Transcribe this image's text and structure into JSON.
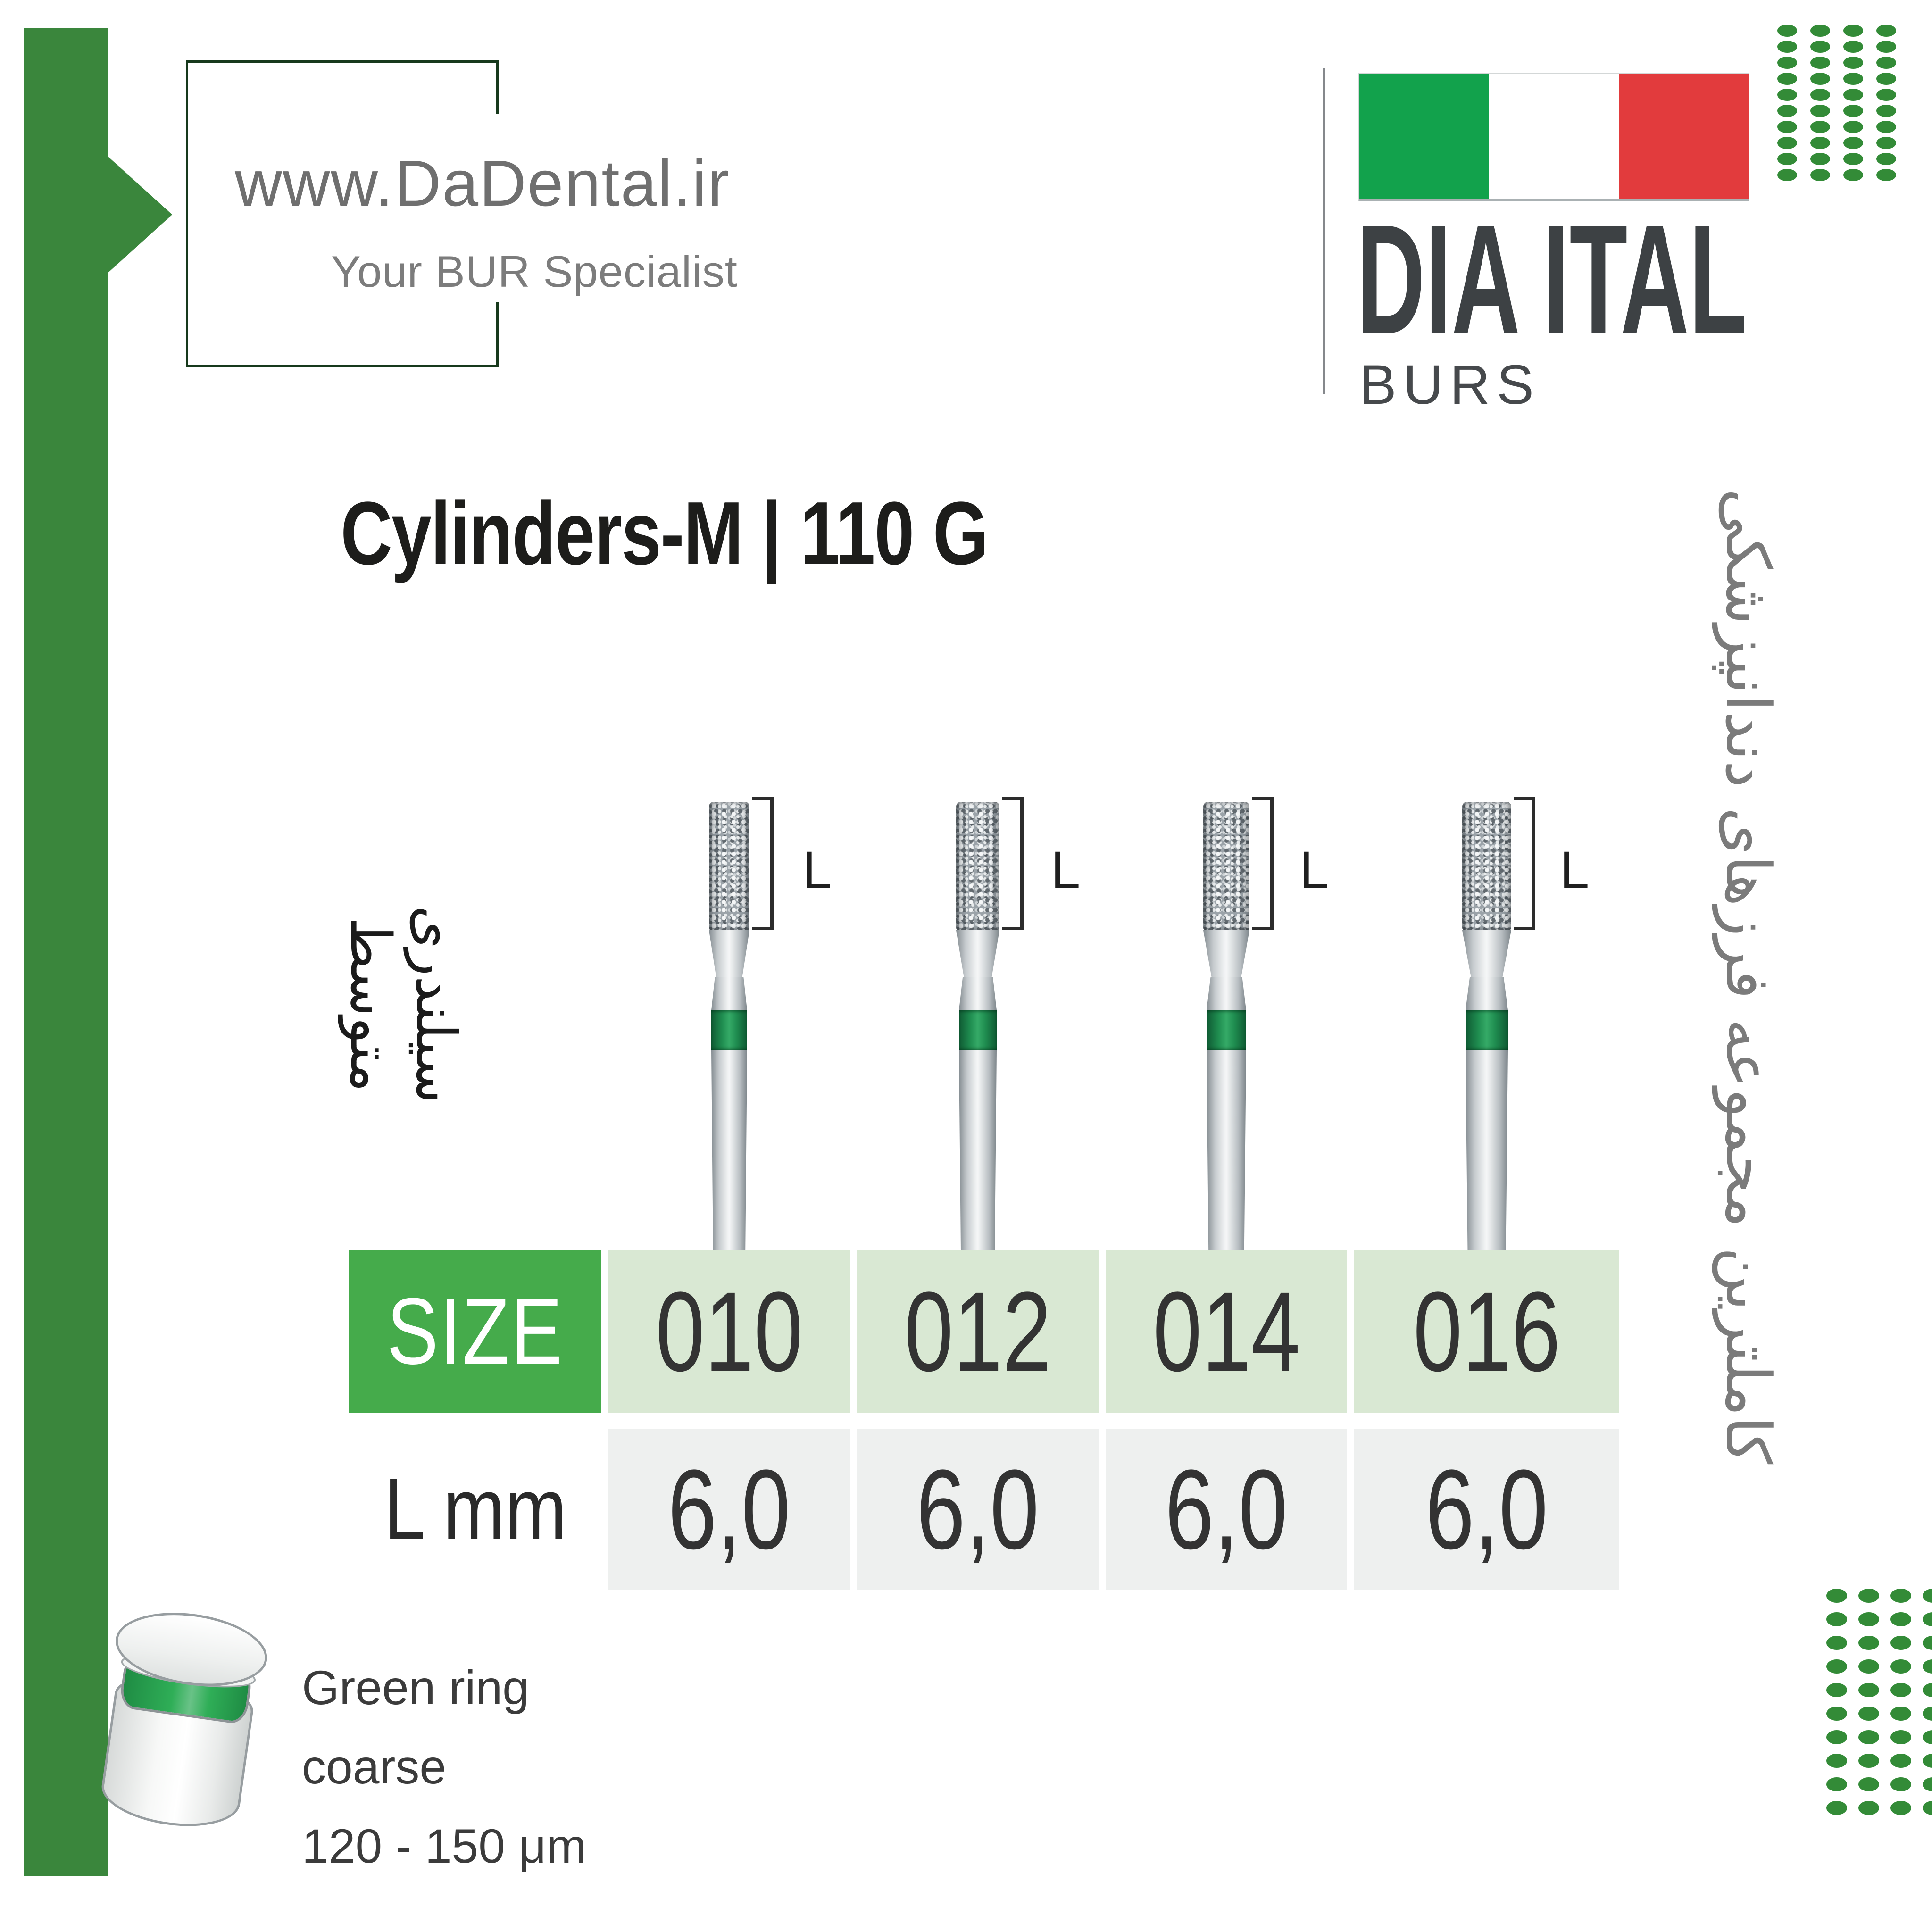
{
  "branding": {
    "website": "www.DaDental.ir",
    "tagline": "Your BUR Specialist",
    "brand_title": "DIA ITAL",
    "brand_subtitle": "BURS"
  },
  "title": "Cylinders-M | 110 G",
  "category_label_fa": "سیلندری\nمتوسط",
  "side_text_fa": "کاملترین مجموعه فرزهای دندانپزشکی",
  "dimension_label": "L",
  "table": {
    "header_label": "SIZE",
    "row_label": "L mm",
    "sizes": [
      "010",
      "012",
      "014",
      "016"
    ],
    "l_mm": [
      "6,0",
      "6,0",
      "6,0",
      "6,0"
    ]
  },
  "legend": {
    "line1": "Green ring",
    "line2": "coarse",
    "line3": "120 - 150 μm"
  },
  "colors": {
    "accent_green": "#3a863c",
    "table_header_green": "#45ab4b",
    "pale_green_cell": "#d9e8d3",
    "pale_gray_cell": "#eef0ef",
    "flag_green": "#12a24c",
    "flag_red": "#e23b3d",
    "ring_green": "#1e8b4f",
    "dot_green": "#338b37"
  },
  "icons": {
    "dot_grid": "green-dot-grid",
    "flag": "italy-flag-icon",
    "arrow": "right-arrow-marker"
  }
}
